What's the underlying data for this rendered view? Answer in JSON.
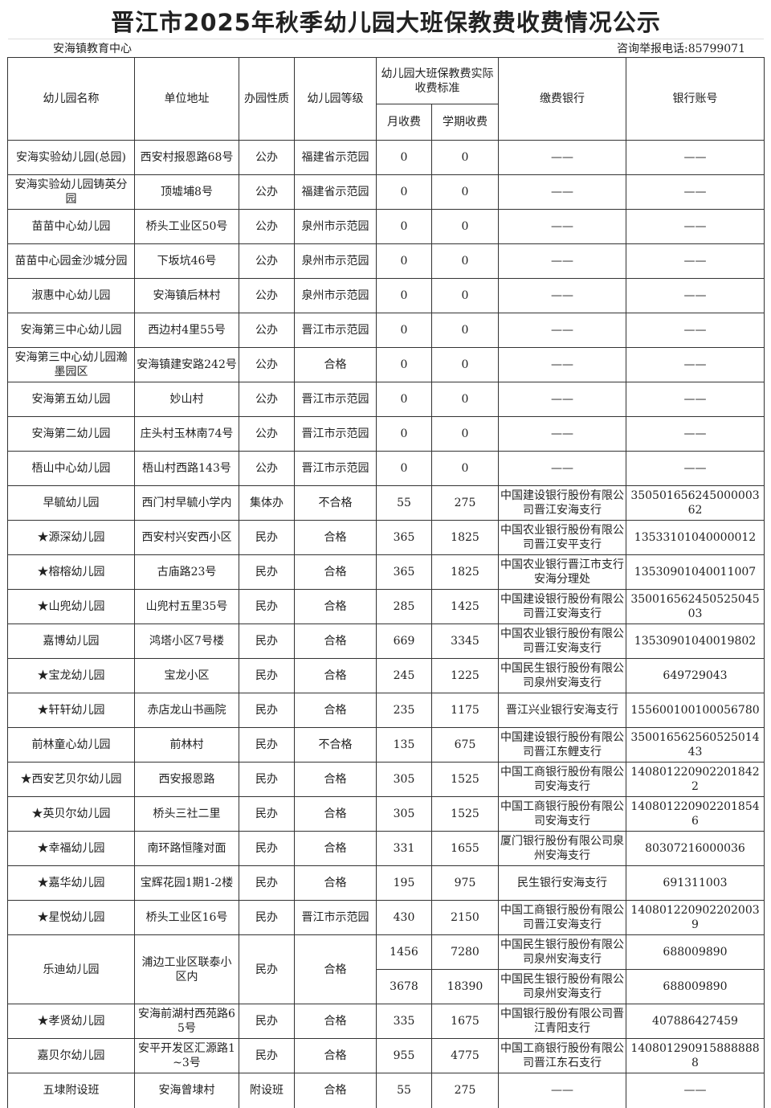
{
  "title": "晋江市2025年秋季幼儿园大班保教费收费情况公示",
  "org": "安海镇教育中心",
  "phone": "咨询举报电话:85799071",
  "headers": {
    "name": "幼儿园名称",
    "address": "单位地址",
    "type": "办园性质",
    "grade": "幼儿园等级",
    "fee_group": "幼儿园大班保教费实际收费标准",
    "monthly": "月收费",
    "term": "学期收费",
    "bank": "缴费银行",
    "account": "银行账号"
  },
  "rows": [
    {
      "name": "安海实验幼儿园(总园)",
      "address": "西安村报恩路68号",
      "type": "公办",
      "grade": "福建省示范园",
      "fees": [
        {
          "monthly": "0",
          "term": "0",
          "bank": "——",
          "account": "——"
        }
      ]
    },
    {
      "name": "安海实验幼儿园铸英分园",
      "address": "顶墟埔8号",
      "type": "公办",
      "grade": "福建省示范园",
      "fees": [
        {
          "monthly": "0",
          "term": "0",
          "bank": "——",
          "account": "——"
        }
      ]
    },
    {
      "name": "苗苗中心幼儿园",
      "address": "桥头工业区50号",
      "type": "公办",
      "grade": "泉州市示范园",
      "fees": [
        {
          "monthly": "0",
          "term": "0",
          "bank": "——",
          "account": "——"
        }
      ]
    },
    {
      "name": "苗苗中心园金沙城分园",
      "address": "下坂坑46号",
      "type": "公办",
      "grade": "泉州市示范园",
      "fees": [
        {
          "monthly": "0",
          "term": "0",
          "bank": "——",
          "account": "——"
        }
      ]
    },
    {
      "name": "淑惠中心幼儿园",
      "address": "安海镇后林村",
      "type": "公办",
      "grade": "泉州市示范园",
      "fees": [
        {
          "monthly": "0",
          "term": "0",
          "bank": "——",
          "account": "——"
        }
      ]
    },
    {
      "name": "安海第三中心幼儿园",
      "address": "西边村4里55号",
      "type": "公办",
      "grade": "晋江市示范园",
      "fees": [
        {
          "monthly": "0",
          "term": "0",
          "bank": "——",
          "account": "——"
        }
      ]
    },
    {
      "name": "安海第三中心幼儿园瀚墨园区",
      "address": "安海镇建安路242号",
      "type": "公办",
      "grade": "合格",
      "fees": [
        {
          "monthly": "0",
          "term": "0",
          "bank": "——",
          "account": "——"
        }
      ]
    },
    {
      "name": "安海第五幼儿园",
      "address": "妙山村",
      "type": "公办",
      "grade": "晋江市示范园",
      "fees": [
        {
          "monthly": "0",
          "term": "0",
          "bank": "——",
          "account": "——"
        }
      ]
    },
    {
      "name": "安海第二幼儿园",
      "address": "庄头村玉林南74号",
      "type": "公办",
      "grade": "晋江市示范园",
      "fees": [
        {
          "monthly": "0",
          "term": "0",
          "bank": "——",
          "account": "——"
        }
      ]
    },
    {
      "name": "梧山中心幼儿园",
      "address": "梧山村西路143号",
      "type": "公办",
      "grade": "晋江市示范园",
      "fees": [
        {
          "monthly": "0",
          "term": "0",
          "bank": "——",
          "account": "——"
        }
      ]
    },
    {
      "name": "早毓幼儿园",
      "address": "西门村早毓小学内",
      "type": "集体办",
      "grade": "不合格",
      "fees": [
        {
          "monthly": "55",
          "term": "275",
          "bank": "中国建设银行股份有限公司晋江安海支行",
          "account": "35050165624500000362"
        }
      ]
    },
    {
      "name": "★源深幼儿园",
      "address": "西安村兴安西小区",
      "type": "民办",
      "grade": "合格",
      "fees": [
        {
          "monthly": "365",
          "term": "1825",
          "bank": "中国农业银行股份有限公司晋江安平支行",
          "account": "13533101040000012"
        }
      ]
    },
    {
      "name": "★榕榕幼儿园",
      "address": "古庙路23号",
      "type": "民办",
      "grade": "合格",
      "fees": [
        {
          "monthly": "365",
          "term": "1825",
          "bank": "中国农业银行晋江市支行安海分理处",
          "account": "13530901040011007"
        }
      ]
    },
    {
      "name": "★山兜幼儿园",
      "address": "山兜村五里35号",
      "type": "民办",
      "grade": "合格",
      "fees": [
        {
          "monthly": "285",
          "term": "1425",
          "bank": "中国建设银行股份有限公司晋江安海支行",
          "account": "35001656245052504503"
        }
      ]
    },
    {
      "name": "嘉博幼儿园",
      "address": "鸿塔小区7号楼",
      "type": "民办",
      "grade": "合格",
      "fees": [
        {
          "monthly": "669",
          "term": "3345",
          "bank": "中国农业银行股份有限公司晋江安海支行",
          "account": "13530901040019802"
        }
      ]
    },
    {
      "name": "★宝龙幼儿园",
      "address": "宝龙小区",
      "type": "民办",
      "grade": "合格",
      "fees": [
        {
          "monthly": "245",
          "term": "1225",
          "bank": "中国民生银行股份有限公司泉州安海支行",
          "account": "649729043"
        }
      ]
    },
    {
      "name": "★轩轩幼儿园",
      "address": "赤店龙山书画院",
      "type": "民办",
      "grade": "合格",
      "fees": [
        {
          "monthly": "235",
          "term": "1175",
          "bank": "晋江兴业银行安海支行",
          "account": "155600100100056780"
        }
      ]
    },
    {
      "name": "前林童心幼儿园",
      "address": "前林村",
      "type": "民办",
      "grade": "不合格",
      "fees": [
        {
          "monthly": "135",
          "term": "675",
          "bank": "中国建设银行股份有限公司晋江东鲤支行",
          "account": "35001656256052501443"
        }
      ]
    },
    {
      "name": "★西安艺贝尔幼儿园",
      "address": "西安报恩路",
      "type": "民办",
      "grade": "合格",
      "fees": [
        {
          "monthly": "305",
          "term": "1525",
          "bank": "中国工商银行股份有限公司安海支行",
          "account": "1408012209022018422"
        }
      ]
    },
    {
      "name": "★英贝尔幼儿园",
      "address": "桥头三社二里",
      "type": "民办",
      "grade": "合格",
      "fees": [
        {
          "monthly": "305",
          "term": "1525",
          "bank": "中国工商银行股份有限公司安海支行",
          "account": "1408012209022018546"
        }
      ]
    },
    {
      "name": "★幸福幼儿园",
      "address": "南环路恒隆对面",
      "type": "民办",
      "grade": "合格",
      "fees": [
        {
          "monthly": "331",
          "term": "1655",
          "bank": "厦门银行股份有限公司泉州安海支行",
          "account": "80307216000036"
        }
      ]
    },
    {
      "name": "★嘉华幼儿园",
      "address": "宝辉花园1期1-2楼",
      "type": "民办",
      "grade": "合格",
      "fees": [
        {
          "monthly": "195",
          "term": "975",
          "bank": "民生银行安海支行",
          "account": "691311003"
        }
      ]
    },
    {
      "name": "★星悦幼儿园",
      "address": "桥头工业区16号",
      "type": "民办",
      "grade": "晋江市示范园",
      "fees": [
        {
          "monthly": "430",
          "term": "2150",
          "bank": "中国工商银行股份有限公司晋江安海支行",
          "account": "1408012209022020039"
        }
      ]
    },
    {
      "name": "乐迪幼儿园",
      "address": "浦边工业区联泰小区内",
      "type": "民办",
      "grade": "合格",
      "fees": [
        {
          "monthly": "1456",
          "term": "7280",
          "bank": "中国民生银行股份有限公司泉州安海支行",
          "account": "688009890"
        },
        {
          "monthly": "3678",
          "term": "18390",
          "bank": "中国民生银行股份有限公司泉州安海支行",
          "account": "688009890"
        }
      ]
    },
    {
      "name": "★孝贤幼儿园",
      "address": "安海前湖村西苑路65号",
      "type": "民办",
      "grade": "合格",
      "fees": [
        {
          "monthly": "335",
          "term": "1675",
          "bank": "中国银行股份有限公司晋江青阳支行",
          "account": "407886427459"
        }
      ]
    },
    {
      "name": "嘉贝尔幼儿园",
      "address": "安平开发区汇源路1~3号",
      "type": "民办",
      "grade": "合格",
      "fees": [
        {
          "monthly": "955",
          "term": "4775",
          "bank": "中国工商银行股份有限公司晋江东石支行",
          "account": "1408012909158888888"
        }
      ]
    },
    {
      "name": "五埭附设班",
      "address": "安海曾埭村",
      "type": "附设班",
      "grade": "合格",
      "fees": [
        {
          "monthly": "55",
          "term": "275",
          "bank": "——",
          "account": "——"
        }
      ]
    }
  ]
}
